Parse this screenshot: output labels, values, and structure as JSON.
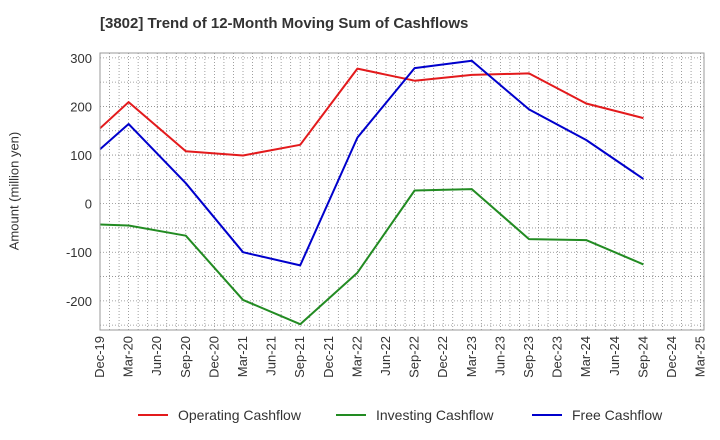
{
  "title": "[3802]  Trend of 12-Month Moving Sum of Cashflows",
  "chart_data": {
    "type": "line",
    "title": "[3802]  Trend of 12-Month Moving Sum of Cashflows",
    "xlabel": "",
    "ylabel": "Amount (million yen)",
    "ylim": [
      -260,
      310
    ],
    "yticks": [
      300,
      200,
      100,
      0,
      -100,
      -200
    ],
    "categories": [
      "Dec-19",
      "Mar-20",
      "Jun-20",
      "Sep-20",
      "Dec-20",
      "Mar-21",
      "Jun-21",
      "Sep-21",
      "Dec-21",
      "Mar-22",
      "Jun-22",
      "Sep-22",
      "Dec-22",
      "Mar-23",
      "Jun-23",
      "Sep-23",
      "Dec-23",
      "Mar-24",
      "Jun-24",
      "Sep-24",
      "Dec-24",
      "Mar-25"
    ],
    "grid": true,
    "legend_position": "bottom",
    "series": [
      {
        "name": "Operating Cashflow",
        "color": "#e31a1c",
        "points": [
          [
            "Dec-19",
            155
          ],
          [
            "Mar-20",
            209
          ],
          [
            "Sep-20",
            108
          ],
          [
            "Mar-21",
            99
          ],
          [
            "Sep-21",
            121
          ],
          [
            "Mar-22",
            278
          ],
          [
            "Sep-22",
            253
          ],
          [
            "Mar-23",
            265
          ],
          [
            "Sep-23",
            268
          ],
          [
            "Mar-24",
            206
          ],
          [
            "Sep-24",
            176
          ]
        ]
      },
      {
        "name": "Investing Cashflow",
        "color": "#228b22",
        "points": [
          [
            "Dec-19",
            -43
          ],
          [
            "Mar-20",
            -45
          ],
          [
            "Sep-20",
            -66
          ],
          [
            "Mar-21",
            -198
          ],
          [
            "Sep-21",
            -248
          ],
          [
            "Mar-22",
            -142
          ],
          [
            "Sep-22",
            27
          ],
          [
            "Mar-23",
            30
          ],
          [
            "Sep-23",
            -73
          ],
          [
            "Mar-24",
            -75
          ],
          [
            "Sep-24",
            -125
          ]
        ]
      },
      {
        "name": "Free Cashflow",
        "color": "#0000cc",
        "points": [
          [
            "Dec-19",
            112
          ],
          [
            "Mar-20",
            164
          ],
          [
            "Sep-20",
            42
          ],
          [
            "Mar-21",
            -100
          ],
          [
            "Sep-21",
            -127
          ],
          [
            "Mar-22",
            136
          ],
          [
            "Sep-22",
            279
          ],
          [
            "Mar-23",
            294
          ],
          [
            "Sep-23",
            194
          ],
          [
            "Mar-24",
            131
          ],
          [
            "Sep-24",
            51
          ]
        ]
      }
    ]
  }
}
